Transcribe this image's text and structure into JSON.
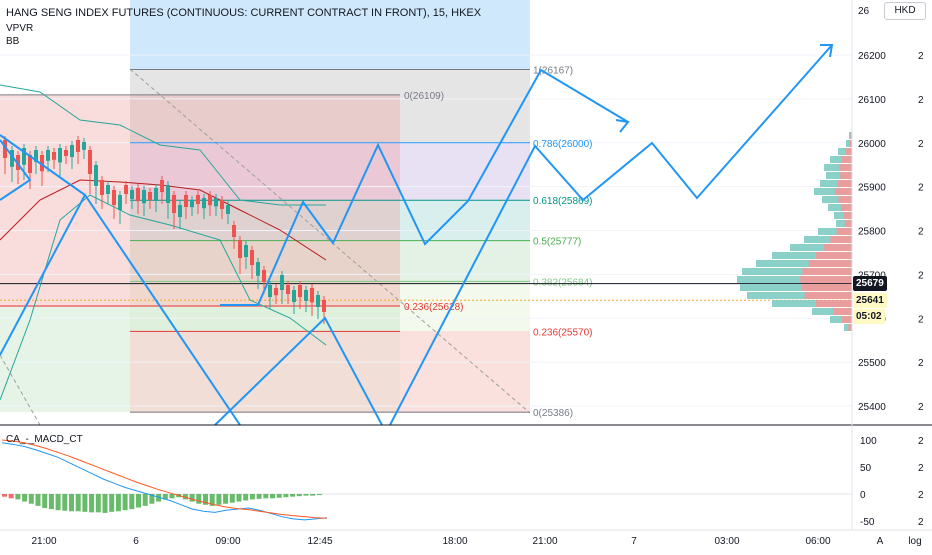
{
  "chart_data": {
    "type": "candlestick",
    "title": "HANG SENG INDEX FUTURES (CONTINUOUS: CURRENT CONTRACT IN FRONT), 15, HKEX",
    "indicators": [
      "VPVR",
      "BB"
    ],
    "currency": "HKD",
    "price_ticks": [
      "26200",
      "26100",
      "26000",
      "25900",
      "25800",
      "25700",
      "25600",
      "25500",
      "25400"
    ],
    "time_ticks": [
      "21:00",
      "6",
      "09:00",
      "12:45",
      "18:00",
      "21:00",
      "7",
      "03:00",
      "06:00"
    ],
    "last_price": "25679",
    "price_line_2": "25641",
    "countdown": "05:02",
    "fib_a": {
      "levels": [
        {
          "label": "1(26167)",
          "price": 26167
        },
        {
          "label": "0.786(26000)",
          "price": 26000
        },
        {
          "label": "0.618(25869)",
          "price": 25869
        },
        {
          "label": "0.5(25777)",
          "price": 25777
        },
        {
          "label": "0.382(25684)",
          "price": 25684
        },
        {
          "label": "0(25386)",
          "price": 25386
        }
      ]
    },
    "fib_b": {
      "levels": [
        {
          "label": "0(26109)",
          "price": 26109
        },
        {
          "label": "0.236(25628)",
          "price": 25628
        },
        {
          "label": "0.236(25570)",
          "price": 25570
        }
      ]
    },
    "macd": {
      "name": "CA_-_MACD_CT",
      "ticks": [
        "100",
        "50",
        "0",
        "-50"
      ],
      "histogram": [
        -5,
        -8,
        -10,
        -14,
        -18,
        -22,
        -26,
        -28,
        -30,
        -31,
        -32,
        -32,
        -33,
        -34,
        -34,
        -35,
        -33,
        -32,
        -30,
        -28,
        -25,
        -22,
        -18,
        -14,
        -10,
        -8,
        -6,
        -10,
        -14,
        -18,
        -20,
        -22,
        -20,
        -18,
        -16,
        -14,
        -12,
        -10,
        -9,
        -8,
        -8,
        -7,
        -6,
        -5,
        -4,
        -3,
        -3,
        -2
      ],
      "macd_line": [
        95,
        92,
        88,
        82,
        75,
        68,
        58,
        48,
        38,
        28,
        20,
        12,
        6,
        0,
        -6,
        -12,
        -20,
        -28,
        -32,
        -34,
        -30,
        -28,
        -26,
        -30,
        -36,
        -42,
        -46,
        -48,
        -46,
        -44
      ],
      "signal_line": [
        100,
        98,
        95,
        90,
        84,
        77,
        70,
        62,
        54,
        46,
        38,
        30,
        22,
        15,
        8,
        2,
        -4,
        -10,
        -15,
        -20,
        -24,
        -27,
        -29,
        -32,
        -35,
        -38,
        -40,
        -42,
        -44,
        -45
      ]
    },
    "footer_buttons": [
      "A",
      "log"
    ]
  }
}
